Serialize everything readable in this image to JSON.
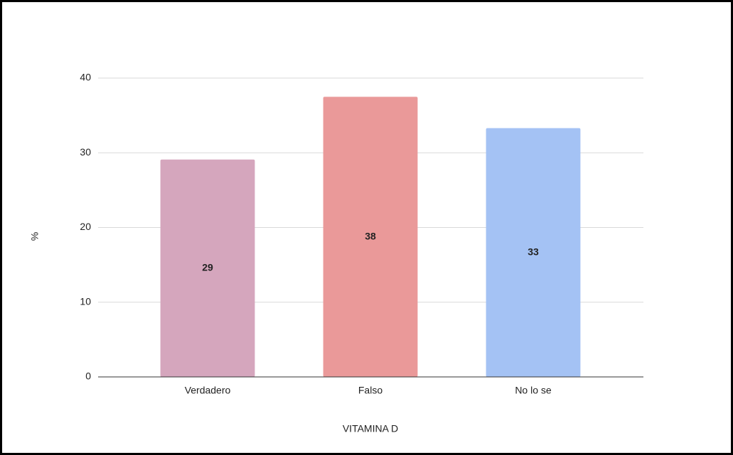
{
  "chart_data": {
    "type": "bar",
    "x_label": "VITAMINA D",
    "y_label": "%",
    "categories": [
      "Verdadero",
      "Falso",
      "No lo se"
    ],
    "values": [
      29.1,
      37.5,
      33.3
    ],
    "value_labels": [
      "29",
      "38",
      "33"
    ],
    "colors": [
      "#d5a6bd",
      "#ea9999",
      "#a4c2f4"
    ],
    "ylim": [
      0,
      40
    ],
    "yticks": [
      0,
      10,
      20,
      30,
      40
    ],
    "grid": true
  }
}
